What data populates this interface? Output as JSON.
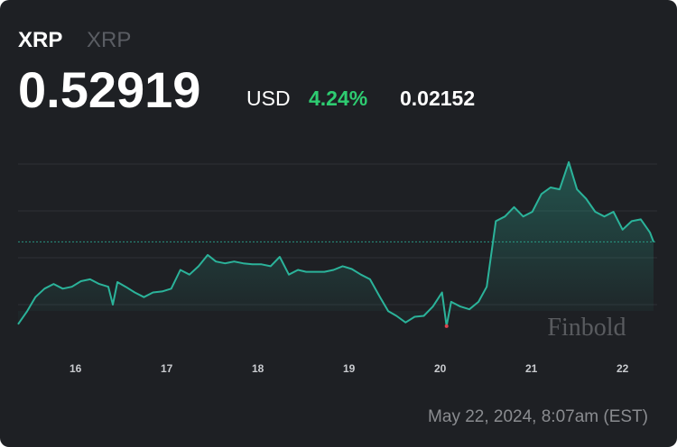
{
  "header": {
    "symbol": "XRP",
    "subtitle": "XRP",
    "price": 0.52919,
    "currency": "USD",
    "change_percent": "4.24%",
    "change": 0.02152
  },
  "timestamp": "May 22, 2024, 8:07am (EST)",
  "watermark": "Finbold",
  "chart_data": {
    "type": "line",
    "color": "#2bb39a",
    "grid": true,
    "x": [
      15.37,
      15.47,
      15.56,
      15.66,
      15.76,
      15.86,
      15.96,
      16.06,
      16.16,
      16.26,
      16.36,
      16.41,
      16.46,
      16.55,
      16.65,
      16.75,
      16.85,
      16.95,
      17.05,
      17.15,
      17.25,
      17.35,
      17.45,
      17.54,
      17.64,
      17.74,
      17.84,
      17.94,
      18.04,
      18.14,
      18.24,
      18.34,
      18.44,
      18.53,
      18.63,
      18.73,
      18.83,
      18.93,
      19.03,
      19.13,
      19.23,
      19.34,
      19.43,
      19.52,
      19.62,
      19.72,
      19.82,
      19.92,
      20.02,
      20.07,
      20.12,
      20.22,
      20.32,
      20.42,
      20.51,
      20.61,
      20.71,
      20.81,
      20.91,
      21.01,
      21.11,
      21.21,
      21.31,
      21.41,
      21.5,
      21.6,
      21.7,
      21.8,
      21.9,
      22.0,
      22.1,
      22.2,
      22.3,
      22.34
    ],
    "values": [
      0.5204,
      0.5218,
      0.5233,
      0.5242,
      0.5247,
      0.5242,
      0.5244,
      0.525,
      0.5252,
      0.5247,
      0.5244,
      0.5225,
      0.5249,
      0.5244,
      0.5238,
      0.5233,
      0.5238,
      0.5239,
      0.5242,
      0.5262,
      0.5257,
      0.5266,
      0.5278,
      0.5271,
      0.5269,
      0.5271,
      0.5269,
      0.5268,
      0.5268,
      0.5266,
      0.5276,
      0.5257,
      0.5262,
      0.526,
      0.526,
      0.526,
      0.5262,
      0.5266,
      0.5263,
      0.5257,
      0.5252,
      0.5233,
      0.5218,
      0.5213,
      0.5206,
      0.5212,
      0.5213,
      0.5223,
      0.5238,
      0.5202,
      0.5228,
      0.5223,
      0.522,
      0.5228,
      0.5244,
      0.5314,
      0.5319,
      0.5329,
      0.5319,
      0.5324,
      0.5343,
      0.535,
      0.5348,
      0.5377,
      0.5348,
      0.5338,
      0.5324,
      0.5319,
      0.5324,
      0.5305,
      0.5314,
      0.5316,
      0.5302,
      0.52919
    ],
    "xlim": [
      15.37,
      22.34
    ],
    "xticks": [
      16,
      17,
      18,
      19,
      20,
      21,
      22
    ],
    "ylim": [
      0.5175,
      0.5425
    ],
    "yticks": [
      0.5225,
      0.5275,
      0.5325,
      0.5375
    ]
  }
}
